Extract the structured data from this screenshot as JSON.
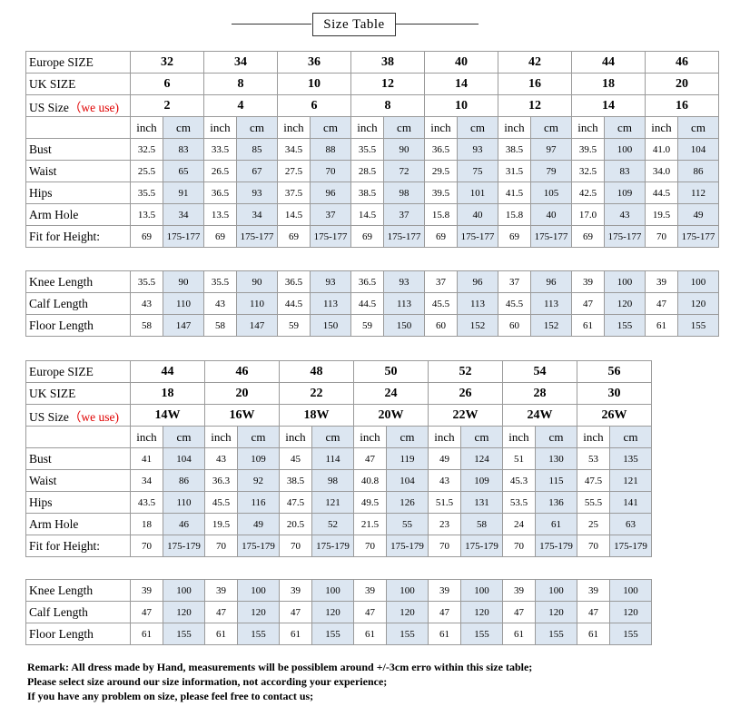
{
  "title": "Size Table",
  "units": [
    "inch",
    "cm"
  ],
  "tables": [
    {
      "size_rows": [
        {
          "label": "Europe  SIZE",
          "values": [
            "32",
            "34",
            "36",
            "38",
            "40",
            "42",
            "44",
            "46"
          ]
        },
        {
          "label": "UK SIZE",
          "values": [
            "6",
            "8",
            "10",
            "12",
            "14",
            "16",
            "18",
            "20"
          ]
        },
        {
          "label": "US Size",
          "note": "（we use)",
          "values": [
            "2",
            "4",
            "6",
            "8",
            "10",
            "12",
            "14",
            "16"
          ]
        }
      ],
      "measure_rows": [
        {
          "label": "Bust",
          "values": [
            "32.5",
            "83",
            "33.5",
            "85",
            "34.5",
            "88",
            "35.5",
            "90",
            "36.5",
            "93",
            "38.5",
            "97",
            "39.5",
            "100",
            "41.0",
            "104"
          ]
        },
        {
          "label": "Waist",
          "values": [
            "25.5",
            "65",
            "26.5",
            "67",
            "27.5",
            "70",
            "28.5",
            "72",
            "29.5",
            "75",
            "31.5",
            "79",
            "32.5",
            "83",
            "34.0",
            "86"
          ]
        },
        {
          "label": "Hips",
          "values": [
            "35.5",
            "91",
            "36.5",
            "93",
            "37.5",
            "96",
            "38.5",
            "98",
            "39.5",
            "101",
            "41.5",
            "105",
            "42.5",
            "109",
            "44.5",
            "112"
          ]
        },
        {
          "label": "Arm Hole",
          "values": [
            "13.5",
            "34",
            "13.5",
            "34",
            "14.5",
            "37",
            "14.5",
            "37",
            "15.8",
            "40",
            "15.8",
            "40",
            "17.0",
            "43",
            "19.5",
            "49"
          ]
        },
        {
          "label": "Fit for Height:",
          "values": [
            "69",
            "175-177",
            "69",
            "175-177",
            "69",
            "175-177",
            "69",
            "175-177",
            "69",
            "175-177",
            "69",
            "175-177",
            "69",
            "175-177",
            "70",
            "175-177"
          ]
        }
      ]
    },
    {
      "measure_rows": [
        {
          "label": "Knee Length",
          "values": [
            "35.5",
            "90",
            "35.5",
            "90",
            "36.5",
            "93",
            "36.5",
            "93",
            "37",
            "96",
            "37",
            "96",
            "39",
            "100",
            "39",
            "100"
          ]
        },
        {
          "label": "Calf  Length",
          "values": [
            "43",
            "110",
            "43",
            "110",
            "44.5",
            "113",
            "44.5",
            "113",
            "45.5",
            "113",
            "45.5",
            "113",
            "47",
            "120",
            "47",
            "120"
          ]
        },
        {
          "label": "Floor  Length",
          "values": [
            "58",
            "147",
            "58",
            "147",
            "59",
            "150",
            "59",
            "150",
            "60",
            "152",
            "60",
            "152",
            "61",
            "155",
            "61",
            "155"
          ]
        }
      ]
    },
    {
      "size_rows": [
        {
          "label": "Europe  SIZE",
          "values": [
            "44",
            "46",
            "48",
            "50",
            "52",
            "54",
            "56"
          ]
        },
        {
          "label": "UK SIZE",
          "values": [
            "18",
            "20",
            "22",
            "24",
            "26",
            "28",
            "30"
          ]
        },
        {
          "label": "US Size",
          "note": "（we use)",
          "values": [
            "14W",
            "16W",
            "18W",
            "20W",
            "22W",
            "24W",
            "26W"
          ]
        }
      ],
      "measure_rows": [
        {
          "label": "Bust",
          "values": [
            "41",
            "104",
            "43",
            "109",
            "45",
            "114",
            "47",
            "119",
            "49",
            "124",
            "51",
            "130",
            "53",
            "135"
          ]
        },
        {
          "label": "Waist",
          "values": [
            "34",
            "86",
            "36.3",
            "92",
            "38.5",
            "98",
            "40.8",
            "104",
            "43",
            "109",
            "45.3",
            "115",
            "47.5",
            "121"
          ]
        },
        {
          "label": "Hips",
          "values": [
            "43.5",
            "110",
            "45.5",
            "116",
            "47.5",
            "121",
            "49.5",
            "126",
            "51.5",
            "131",
            "53.5",
            "136",
            "55.5",
            "141"
          ]
        },
        {
          "label": "Arm Hole",
          "values": [
            "18",
            "46",
            "19.5",
            "49",
            "20.5",
            "52",
            "21.5",
            "55",
            "23",
            "58",
            "24",
            "61",
            "25",
            "63"
          ]
        },
        {
          "label": "Fit for Height:",
          "values": [
            "70",
            "175-179",
            "70",
            "175-179",
            "70",
            "175-179",
            "70",
            "175-179",
            "70",
            "175-179",
            "70",
            "175-179",
            "70",
            "175-179"
          ]
        }
      ]
    },
    {
      "measure_rows": [
        {
          "label": "Knee Length",
          "values": [
            "39",
            "100",
            "39",
            "100",
            "39",
            "100",
            "39",
            "100",
            "39",
            "100",
            "39",
            "100",
            "39",
            "100"
          ]
        },
        {
          "label": "Calf  Length",
          "values": [
            "47",
            "120",
            "47",
            "120",
            "47",
            "120",
            "47",
            "120",
            "47",
            "120",
            "47",
            "120",
            "47",
            "120"
          ]
        },
        {
          "label": "Floor  Length",
          "values": [
            "61",
            "155",
            "61",
            "155",
            "61",
            "155",
            "61",
            "155",
            "61",
            "155",
            "61",
            "155",
            "61",
            "155"
          ]
        }
      ]
    }
  ],
  "remarks": [
    "Remark: All dress made by Hand, measurements will be possiblem around +/-3cm erro within this size table;",
    "Please select size around our size information, not according your experience;",
    "If you have any problem on size, please feel free to contact us;"
  ]
}
